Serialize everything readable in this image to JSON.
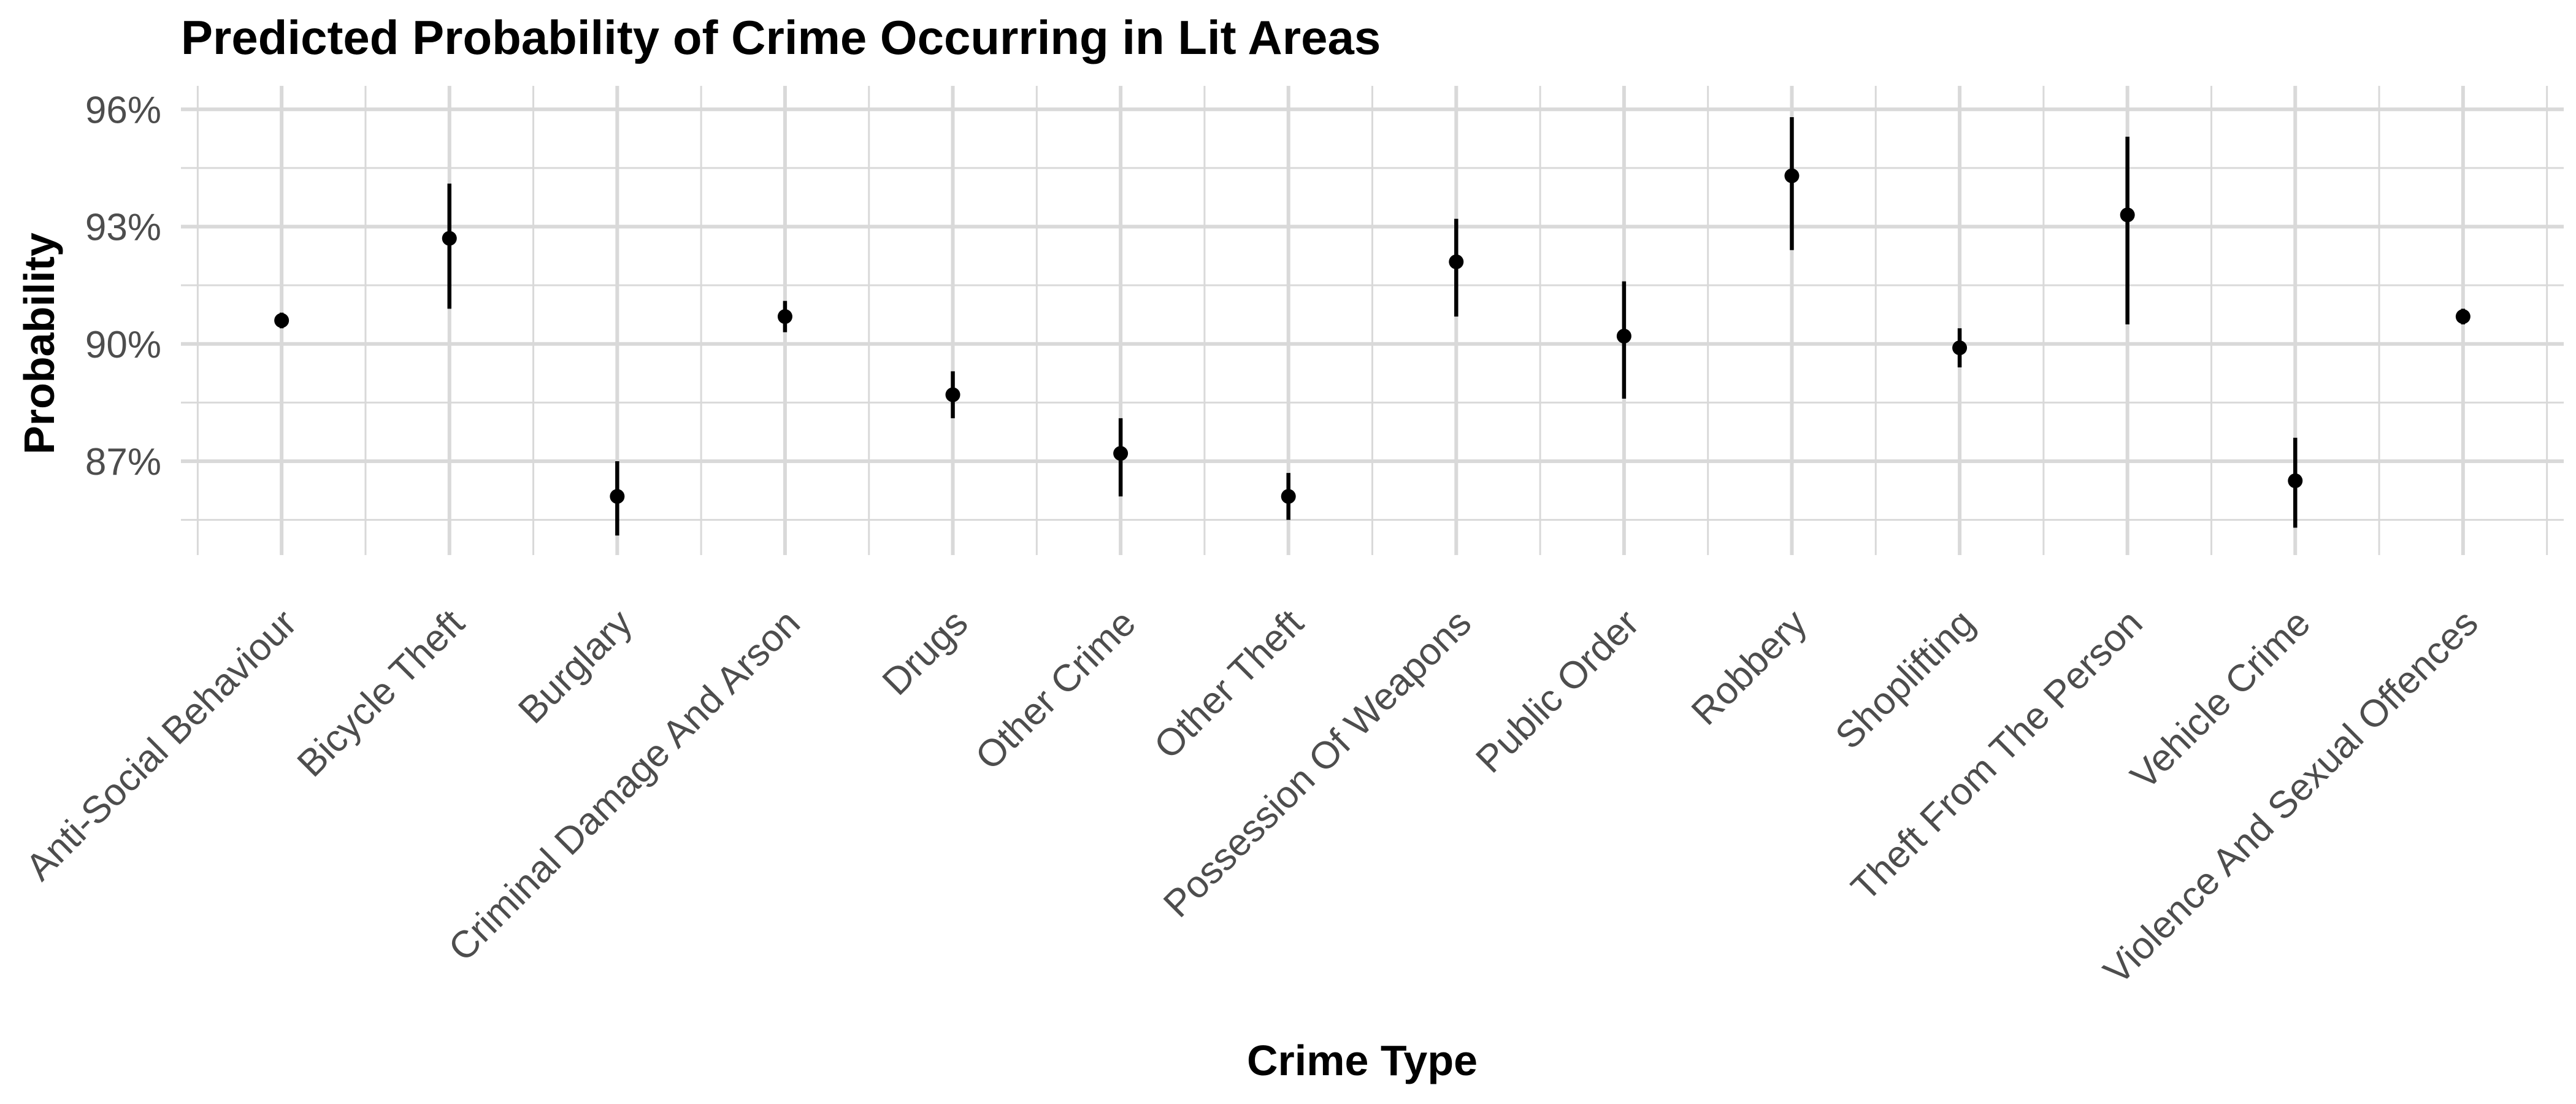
{
  "chart_data": {
    "type": "scatter",
    "title": "Predicted Probability of Crime Occurring in Lit Areas",
    "xlabel": "Crime Type",
    "ylabel": "Probability",
    "ylim": [
      84.6,
      96.6
    ],
    "yticks": [
      87,
      90,
      93,
      96
    ],
    "ytick_labels": [
      "87%",
      "90%",
      "93%",
      "96%"
    ],
    "grid": true,
    "categories": [
      "Anti-Social Behaviour",
      "Bicycle Theft",
      "Burglary",
      "Criminal Damage And Arson",
      "Drugs",
      "Other Crime",
      "Other Theft",
      "Possession Of Weapons",
      "Public Order",
      "Robbery",
      "Shoplifting",
      "Theft From The Person",
      "Vehicle Crime",
      "Violence And Sexual Offences"
    ],
    "series": [
      {
        "values": [
          90.6,
          92.7,
          86.1,
          90.7,
          88.7,
          87.2,
          86.1,
          92.1,
          90.2,
          94.3,
          89.9,
          93.3,
          86.5,
          90.7
        ],
        "lower": [
          90.4,
          90.9,
          85.1,
          90.3,
          88.1,
          86.1,
          85.5,
          90.7,
          88.6,
          92.4,
          89.4,
          90.5,
          85.3,
          90.5
        ],
        "upper": [
          90.8,
          94.1,
          87.0,
          91.1,
          89.3,
          88.1,
          86.7,
          93.2,
          91.6,
          95.8,
          90.4,
          95.3,
          87.6,
          90.9
        ]
      }
    ]
  }
}
